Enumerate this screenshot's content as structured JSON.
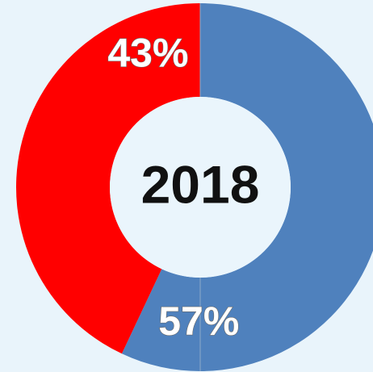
{
  "chart_data": {
    "type": "pie",
    "style": "donut",
    "center_text": "2018",
    "start_angle_deg": 0,
    "direction": "clockwise",
    "slices": [
      {
        "value": 57,
        "label": "57%",
        "color": "#4f81bd"
      },
      {
        "value": 43,
        "label": "43%",
        "color": "#ff0000"
      }
    ]
  },
  "background_color": "#e9f4fb",
  "center_color": "#eaf5fc"
}
